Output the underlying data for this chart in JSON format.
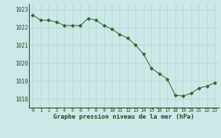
{
  "x": [
    0,
    1,
    2,
    3,
    4,
    5,
    6,
    7,
    8,
    9,
    10,
    11,
    12,
    13,
    14,
    15,
    16,
    17,
    18,
    19,
    20,
    21,
    22,
    23
  ],
  "y": [
    1022.7,
    1022.4,
    1022.4,
    1022.3,
    1022.1,
    1022.1,
    1022.1,
    1022.5,
    1022.4,
    1022.1,
    1021.9,
    1021.6,
    1021.4,
    1021.0,
    1020.5,
    1019.7,
    1019.4,
    1019.1,
    1018.2,
    1018.15,
    1018.3,
    1018.6,
    1018.7,
    1018.9
  ],
  "xlim": [
    -0.5,
    23.5
  ],
  "ylim": [
    1017.5,
    1023.3
  ],
  "yticks": [
    1018,
    1019,
    1020,
    1021,
    1022,
    1023
  ],
  "xticks": [
    0,
    1,
    2,
    3,
    4,
    5,
    6,
    7,
    8,
    9,
    10,
    11,
    12,
    13,
    14,
    15,
    16,
    17,
    18,
    19,
    20,
    21,
    22,
    23
  ],
  "line_color": "#2d6a2d",
  "marker_color": "#2d6a2d",
  "bg_color": "#cce8e8",
  "grid_color": "#b0d4cc",
  "xlabel": "Graphe pression niveau de la mer (hPa)",
  "xlabel_color": "#1a4a1a",
  "tick_color": "#1a4a1a",
  "tick_fontsize": 5.0,
  "ytick_fontsize": 5.5,
  "xlabel_fontsize": 6.5
}
